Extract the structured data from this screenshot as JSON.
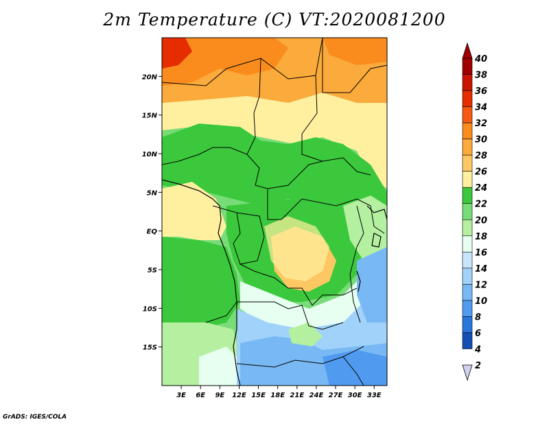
{
  "title": "2m Temperature (C) VT:2020081200",
  "credit": "GrADS: IGES/COLA",
  "map": {
    "lat_labels": [
      "20N",
      "15N",
      "10N",
      "5N",
      "EQ",
      "5S",
      "10S",
      "15S"
    ],
    "lon_labels": [
      "3E",
      "6E",
      "9E",
      "12E",
      "15E",
      "18E",
      "21E",
      "24E",
      "27E",
      "30E",
      "33E"
    ],
    "lat_range": [
      -20,
      25
    ],
    "lon_range": [
      0,
      35
    ]
  },
  "colorbar": {
    "labels": [
      "40",
      "38",
      "36",
      "34",
      "32",
      "30",
      "28",
      "26",
      "24",
      "22",
      "20",
      "18",
      "16",
      "14",
      "12",
      "10",
      "8",
      "6",
      "4",
      "2"
    ],
    "colors": [
      "#a00000",
      "#c81400",
      "#e62d00",
      "#f55a14",
      "#fa8c1e",
      "#fbaa3c",
      "#fdc864",
      "#fff0a0",
      "#3cc83c",
      "#78dc78",
      "#b4f0a0",
      "#e6fff0",
      "#c8e6fa",
      "#a0d2fa",
      "#78b9f5",
      "#509bf0",
      "#2878dc",
      "#1450b4",
      "#0a2882",
      "#d2d2f0"
    ],
    "top_arrow_color": "#a00000",
    "bottom_arrow_color": "#d2d2f0"
  },
  "palette": {
    "hot": "#fa8c1e",
    "warm": "#fbaa3c",
    "pale": "#fdc864",
    "cream": "#fff0a0",
    "green_dark": "#3cc83c",
    "green_mid": "#78dc78",
    "green_light": "#b4f0a0",
    "mint": "#e6fff0",
    "blue_pale": "#c8e6fa",
    "blue_light": "#a0d2fa",
    "blue_mid": "#78b9f5",
    "blue": "#509bf0",
    "red": "#e62d00"
  }
}
